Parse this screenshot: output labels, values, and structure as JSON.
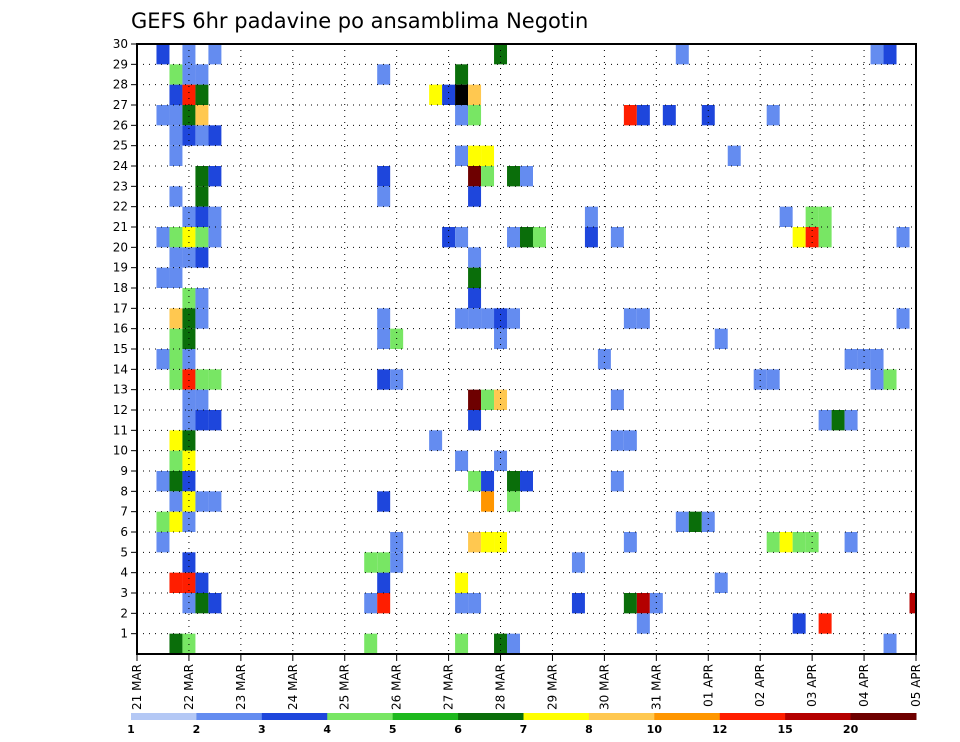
{
  "chart_data": {
    "type": "heatmap",
    "title": "GEFS 6hr padavine po ansamblima Negotin",
    "x_ticks": [
      "21 MAR",
      "22 MAR",
      "23 MAR",
      "24 MAR",
      "25 MAR",
      "26 MAR",
      "27 MAR",
      "28 MAR",
      "29 MAR",
      "30 MAR",
      "31 MAR",
      "01 APR",
      "02 APR",
      "03 APR",
      "04 APR",
      "05 APR"
    ],
    "y_ticks": [
      "1",
      "2",
      "3",
      "4",
      "5",
      "6",
      "7",
      "8",
      "9",
      "10",
      "11",
      "12",
      "13",
      "14",
      "15",
      "16",
      "17",
      "18",
      "19",
      "20",
      "21",
      "22",
      "23",
      "24",
      "25",
      "26",
      "27",
      "28",
      "29",
      "30"
    ],
    "xlim_steps": [
      0,
      60
    ],
    "ylim": [
      0,
      30
    ],
    "grid": true,
    "colorbar": {
      "labels": [
        "1",
        "2",
        "3",
        "4",
        "5",
        "6",
        "7",
        "8",
        "10",
        "12",
        "15",
        "20"
      ],
      "colors": [
        "#b4c8f5",
        "#648cf0",
        "#1e46dc",
        "#78e664",
        "#1eb91e",
        "#0a6e0a",
        "#ffff00",
        "#ffc850",
        "#ff9600",
        "#ff1e00",
        "#b40000",
        "#6e0000"
      ]
    },
    "cells": [
      [
        2,
        30,
        2
      ],
      [
        4,
        30,
        1
      ],
      [
        6,
        30,
        1
      ],
      [
        28,
        30,
        5
      ],
      [
        42,
        30,
        1
      ],
      [
        57,
        30,
        1
      ],
      [
        58,
        30,
        2
      ],
      [
        3,
        29,
        3
      ],
      [
        4,
        29,
        1
      ],
      [
        5,
        29,
        1
      ],
      [
        19,
        29,
        1
      ],
      [
        25,
        29,
        5
      ],
      [
        3,
        28,
        2
      ],
      [
        4,
        28,
        9
      ],
      [
        5,
        28,
        5
      ],
      [
        23,
        28,
        6
      ],
      [
        24,
        28,
        2
      ],
      [
        25,
        28,
        12
      ],
      [
        26,
        28,
        7
      ],
      [
        2,
        27,
        1
      ],
      [
        3,
        27,
        1
      ],
      [
        4,
        27,
        5
      ],
      [
        5,
        27,
        7
      ],
      [
        25,
        27,
        1
      ],
      [
        26,
        27,
        3
      ],
      [
        38,
        27,
        9
      ],
      [
        39,
        27,
        2
      ],
      [
        41,
        27,
        2
      ],
      [
        44,
        27,
        2
      ],
      [
        49,
        27,
        1
      ],
      [
        3,
        26,
        1
      ],
      [
        4,
        26,
        2
      ],
      [
        5,
        26,
        1
      ],
      [
        6,
        26,
        2
      ],
      [
        3,
        25,
        1
      ],
      [
        25,
        25,
        1
      ],
      [
        26,
        25,
        6
      ],
      [
        27,
        25,
        6
      ],
      [
        46,
        25,
        1
      ],
      [
        5,
        24,
        5
      ],
      [
        6,
        24,
        2
      ],
      [
        19,
        24,
        2
      ],
      [
        26,
        24,
        11
      ],
      [
        27,
        24,
        3
      ],
      [
        29,
        24,
        5
      ],
      [
        30,
        24,
        1
      ],
      [
        3,
        23,
        1
      ],
      [
        5,
        23,
        5
      ],
      [
        19,
        23,
        1
      ],
      [
        26,
        23,
        2
      ],
      [
        4,
        22,
        1
      ],
      [
        5,
        22,
        2
      ],
      [
        6,
        22,
        1
      ],
      [
        35,
        22,
        1
      ],
      [
        50,
        22,
        1
      ],
      [
        52,
        22,
        3
      ],
      [
        53,
        22,
        3
      ],
      [
        2,
        21,
        1
      ],
      [
        3,
        21,
        3
      ],
      [
        4,
        21,
        6
      ],
      [
        5,
        21,
        3
      ],
      [
        6,
        21,
        1
      ],
      [
        24,
        21,
        2
      ],
      [
        25,
        21,
        1
      ],
      [
        29,
        21,
        1
      ],
      [
        30,
        21,
        5
      ],
      [
        31,
        21,
        3
      ],
      [
        35,
        21,
        2
      ],
      [
        37,
        21,
        1
      ],
      [
        51,
        21,
        6
      ],
      [
        52,
        21,
        9
      ],
      [
        53,
        21,
        3
      ],
      [
        59,
        21,
        1
      ],
      [
        3,
        20,
        1
      ],
      [
        4,
        20,
        1
      ],
      [
        5,
        20,
        2
      ],
      [
        26,
        20,
        1
      ],
      [
        2,
        19,
        1
      ],
      [
        3,
        19,
        1
      ],
      [
        26,
        19,
        5
      ],
      [
        4,
        18,
        3
      ],
      [
        5,
        18,
        1
      ],
      [
        26,
        18,
        2
      ],
      [
        3,
        17,
        7
      ],
      [
        4,
        17,
        5
      ],
      [
        5,
        17,
        1
      ],
      [
        19,
        17,
        1
      ],
      [
        25,
        17,
        1
      ],
      [
        26,
        17,
        1
      ],
      [
        27,
        17,
        1
      ],
      [
        28,
        17,
        2
      ],
      [
        29,
        17,
        1
      ],
      [
        38,
        17,
        1
      ],
      [
        39,
        17,
        1
      ],
      [
        59,
        17,
        1
      ],
      [
        3,
        16,
        3
      ],
      [
        4,
        16,
        5
      ],
      [
        19,
        16,
        1
      ],
      [
        20,
        16,
        3
      ],
      [
        28,
        16,
        1
      ],
      [
        45,
        16,
        1
      ],
      [
        2,
        15,
        1
      ],
      [
        3,
        15,
        3
      ],
      [
        4,
        15,
        1
      ],
      [
        36,
        15,
        1
      ],
      [
        55,
        15,
        1
      ],
      [
        56,
        15,
        1
      ],
      [
        57,
        15,
        1
      ],
      [
        3,
        14,
        3
      ],
      [
        4,
        14,
        9
      ],
      [
        5,
        14,
        3
      ],
      [
        6,
        14,
        3
      ],
      [
        19,
        14,
        2
      ],
      [
        20,
        14,
        1
      ],
      [
        48,
        14,
        1
      ],
      [
        49,
        14,
        1
      ],
      [
        57,
        14,
        1
      ],
      [
        58,
        14,
        3
      ],
      [
        4,
        13,
        1
      ],
      [
        5,
        13,
        1
      ],
      [
        26,
        13,
        11
      ],
      [
        27,
        13,
        3
      ],
      [
        28,
        13,
        7
      ],
      [
        37,
        13,
        1
      ],
      [
        4,
        12,
        1
      ],
      [
        5,
        12,
        2
      ],
      [
        6,
        12,
        2
      ],
      [
        26,
        12,
        2
      ],
      [
        53,
        12,
        1
      ],
      [
        54,
        12,
        5
      ],
      [
        55,
        12,
        1
      ],
      [
        3,
        11,
        6
      ],
      [
        4,
        11,
        5
      ],
      [
        23,
        11,
        1
      ],
      [
        37,
        11,
        1
      ],
      [
        38,
        11,
        1
      ],
      [
        3,
        10,
        3
      ],
      [
        4,
        10,
        6
      ],
      [
        25,
        10,
        1
      ],
      [
        28,
        10,
        1
      ],
      [
        2,
        9,
        1
      ],
      [
        3,
        9,
        5
      ],
      [
        4,
        9,
        2
      ],
      [
        26,
        9,
        3
      ],
      [
        27,
        9,
        2
      ],
      [
        29,
        9,
        5
      ],
      [
        30,
        9,
        2
      ],
      [
        37,
        9,
        1
      ],
      [
        3,
        8,
        1
      ],
      [
        4,
        8,
        6
      ],
      [
        5,
        8,
        1
      ],
      [
        6,
        8,
        1
      ],
      [
        19,
        8,
        2
      ],
      [
        27,
        8,
        8
      ],
      [
        29,
        8,
        3
      ],
      [
        2,
        7,
        3
      ],
      [
        3,
        7,
        6
      ],
      [
        4,
        7,
        1
      ],
      [
        42,
        7,
        1
      ],
      [
        43,
        7,
        5
      ],
      [
        44,
        7,
        1
      ],
      [
        2,
        6,
        1
      ],
      [
        20,
        6,
        1
      ],
      [
        26,
        6,
        7
      ],
      [
        27,
        6,
        6
      ],
      [
        28,
        6,
        6
      ],
      [
        38,
        6,
        1
      ],
      [
        49,
        6,
        3
      ],
      [
        50,
        6,
        6
      ],
      [
        51,
        6,
        3
      ],
      [
        52,
        6,
        3
      ],
      [
        55,
        6,
        1
      ],
      [
        4,
        5,
        2
      ],
      [
        18,
        5,
        3
      ],
      [
        19,
        5,
        3
      ],
      [
        20,
        5,
        1
      ],
      [
        34,
        5,
        1
      ],
      [
        3,
        4,
        9
      ],
      [
        4,
        4,
        9
      ],
      [
        5,
        4,
        2
      ],
      [
        19,
        4,
        2
      ],
      [
        25,
        4,
        6
      ],
      [
        45,
        4,
        1
      ],
      [
        4,
        3,
        1
      ],
      [
        5,
        3,
        5
      ],
      [
        6,
        3,
        2
      ],
      [
        18,
        3,
        1
      ],
      [
        19,
        3,
        9
      ],
      [
        25,
        3,
        1
      ],
      [
        26,
        3,
        1
      ],
      [
        34,
        3,
        2
      ],
      [
        38,
        3,
        5
      ],
      [
        39,
        3,
        10
      ],
      [
        40,
        3,
        1
      ],
      [
        60,
        3,
        10
      ],
      [
        39,
        2,
        1
      ],
      [
        51,
        2,
        2
      ],
      [
        53,
        2,
        9
      ],
      [
        3,
        1,
        5
      ],
      [
        4,
        1,
        3
      ],
      [
        18,
        1,
        3
      ],
      [
        25,
        1,
        3
      ],
      [
        28,
        1,
        5
      ],
      [
        29,
        1,
        1
      ],
      [
        58,
        1,
        1
      ]
    ]
  }
}
